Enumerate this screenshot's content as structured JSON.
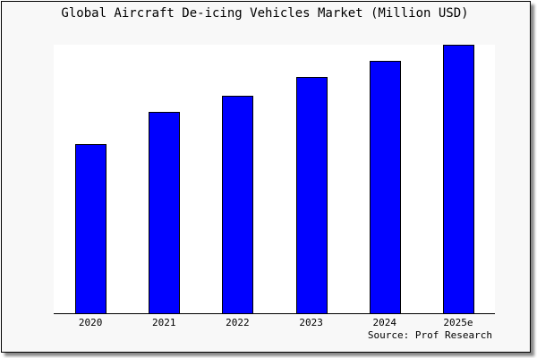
{
  "chart_data": {
    "type": "bar",
    "title": "Global Aircraft De-icing Vehicles Market (Million USD)",
    "categories": [
      "2020",
      "2021",
      "2022",
      "2023",
      "2024",
      "2025e"
    ],
    "values": [
      0.63,
      0.75,
      0.81,
      0.88,
      0.94,
      1.0
    ],
    "value_note": "relative to 2025e (no y-axis printed)",
    "ylim": [
      0,
      1
    ],
    "grid": false,
    "bar_color": "#0000ff",
    "source": "Source: Prof Research"
  }
}
